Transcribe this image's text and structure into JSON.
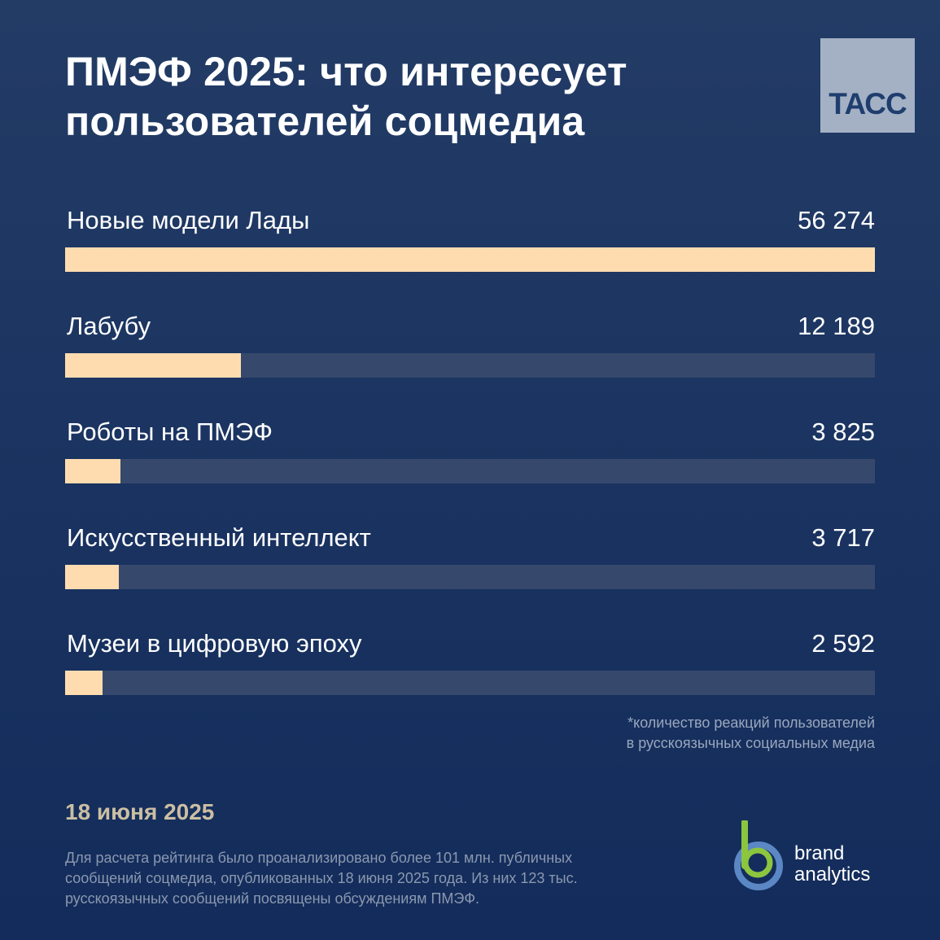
{
  "header": {
    "title_line1": "ПМЭФ 2025: что интересует",
    "title_line2": "пользователей соцмедиа",
    "logo_text": "ТАСС"
  },
  "chart_data": {
    "type": "bar",
    "orientation": "horizontal",
    "categories": [
      "Новые модели Лады",
      "Лабубу",
      "Роботы на ПМЭФ",
      "Искусственный интеллект",
      "Музеи в цифровую эпоху"
    ],
    "values": [
      56274,
      12189,
      3825,
      3717,
      2592
    ],
    "value_labels": [
      "56 274",
      "12 189",
      "3 825",
      "3 717",
      "2 592"
    ],
    "xlim": [
      0,
      56274
    ],
    "grid": false,
    "legend": "none"
  },
  "footnote": {
    "line1": "*количество реакций пользователей",
    "line2": "в русскоязычных социальных медиа"
  },
  "date": "18 июня 2025",
  "methodology": {
    "line1": "Для расчета рейтинга было проанализировано более 101 млн. публичных",
    "line2": "сообщений соцмедиа, опубликованных 18 июня 2025 года. Из них 123 тыс.",
    "line3": "русскоязычных сообщений посвящены обсуждениям ПМЭФ."
  },
  "brand": {
    "line1": "brand",
    "line2": "analytics"
  },
  "colors": {
    "background": "#1b3461",
    "bar_fill": "#ffdcaf",
    "bar_track": "#36496c",
    "tass_logo_bg": "#a4b1c5",
    "brand_green": "#8cc63f",
    "brand_blue": "#5b87c5"
  }
}
